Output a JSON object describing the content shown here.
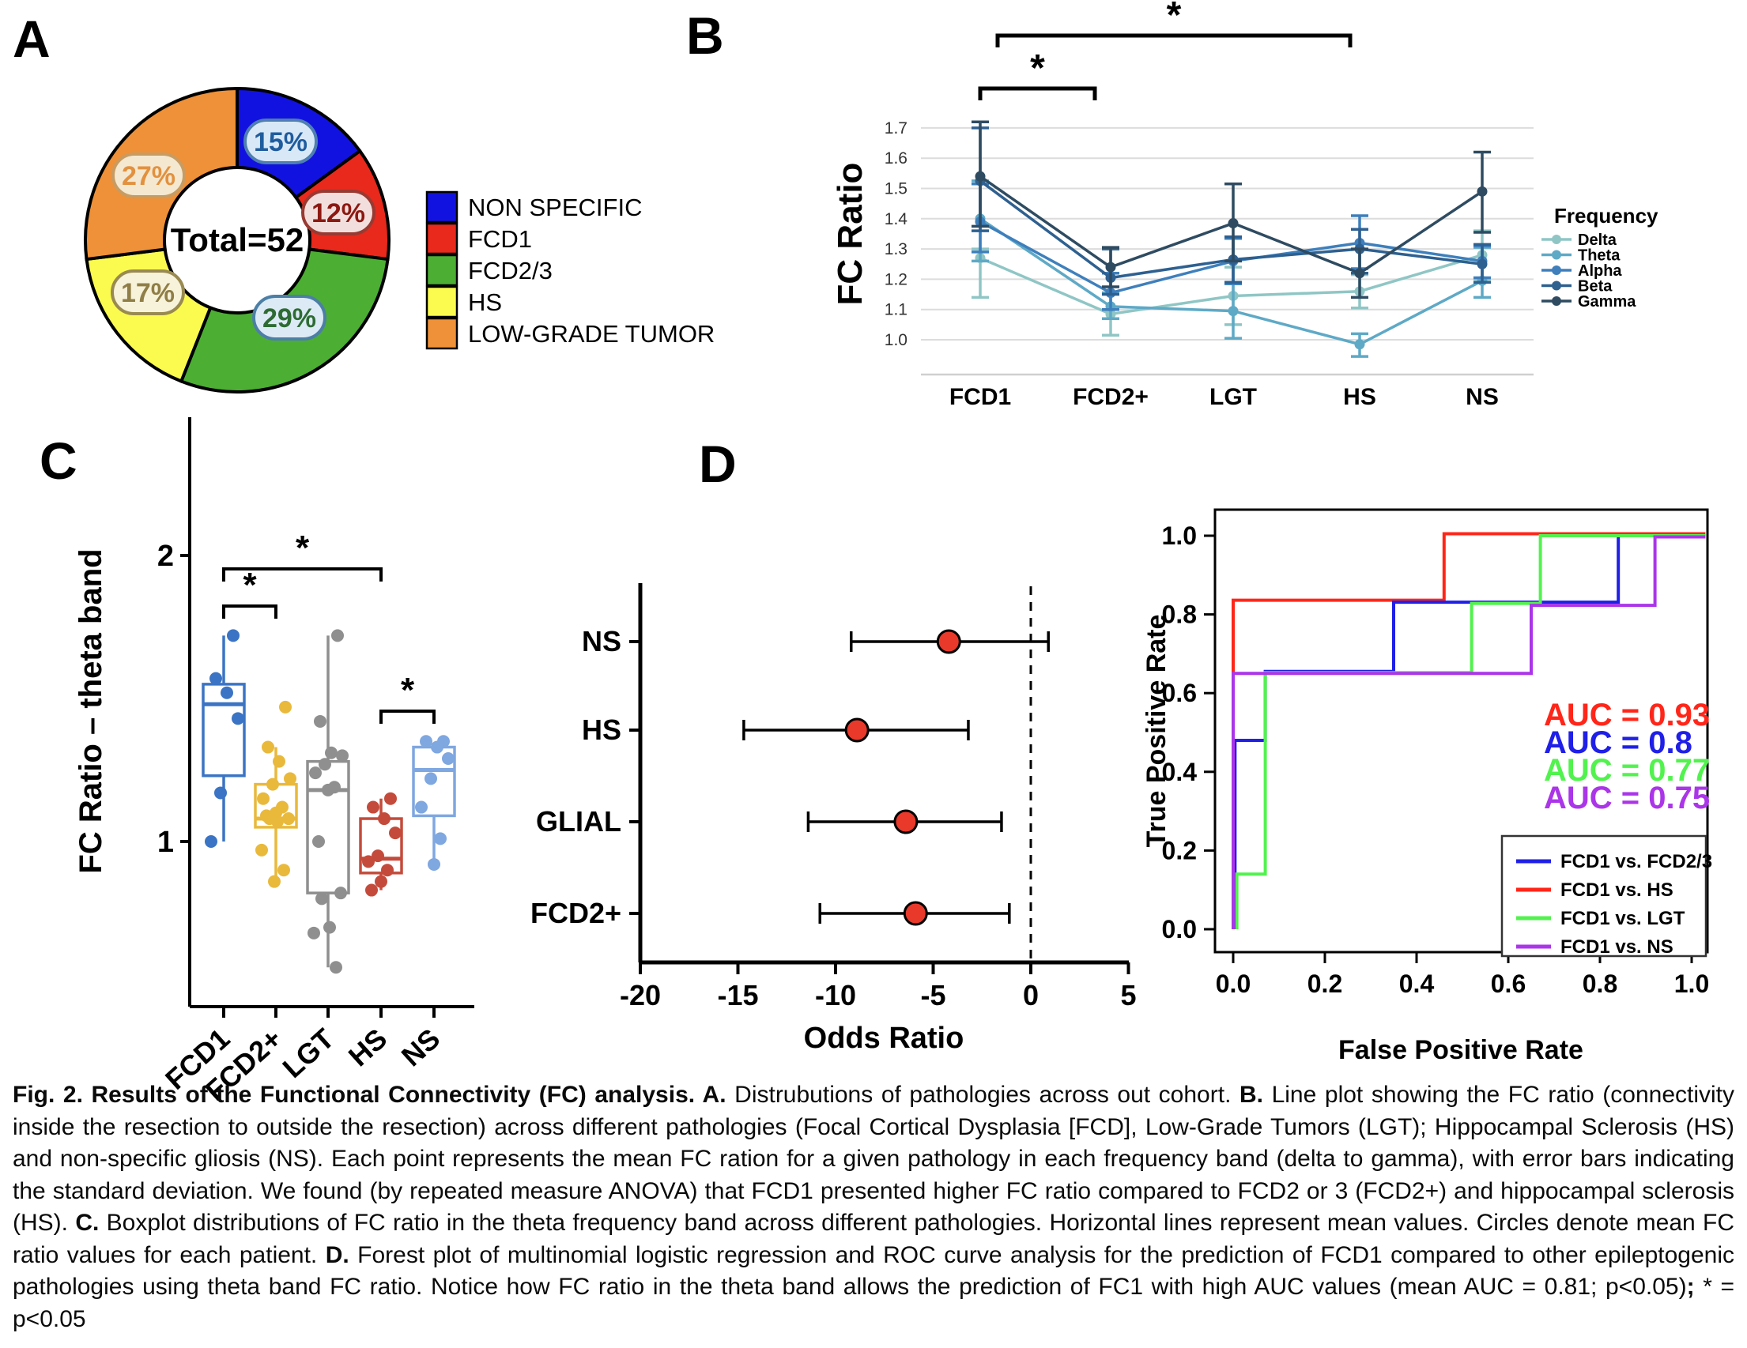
{
  "figure_title": "Fig. 2",
  "panels": [
    {
      "label": "A"
    },
    {
      "label": "B"
    },
    {
      "label": "C"
    },
    {
      "label": "D"
    }
  ],
  "chart_data": [
    {
      "id": "pathology-distribution-donut",
      "type": "pie",
      "center_label": "Total=52",
      "legend_position": "right",
      "slices": [
        {
          "label": "NON SPECIFIC",
          "value_pct": 15,
          "color": "#1212E0",
          "callout": "15%",
          "pill_bg": "#D9E8F7",
          "pill_border": "#4E7FB0",
          "pill_text_color": "#1F5C9E"
        },
        {
          "label": "FCD1",
          "value_pct": 12,
          "color": "#E8291B",
          "callout": "12%",
          "pill_bg": "#F2DFDD",
          "pill_border": "#993A32",
          "pill_text_color": "#8C1812"
        },
        {
          "label": "FCD2/3",
          "value_pct": 29,
          "color": "#4CAE33",
          "callout": "29%",
          "pill_bg": "#DCEAF5",
          "pill_border": "#4C7FA6",
          "pill_text_color": "#2E6B33"
        },
        {
          "label": "HS",
          "value_pct": 17,
          "color": "#FBFB4F",
          "callout": "17%",
          "pill_bg": "#F7F2DA",
          "pill_border": "#998A50",
          "pill_text_color": "#8F7E46"
        },
        {
          "label": "LOW-GRADE TUMOR",
          "value_pct": 27,
          "color": "#EF9138",
          "callout": "27%",
          "pill_bg": "#F5E8D0",
          "pill_border": "#C79C63",
          "pill_text_color": "#E2913F"
        }
      ]
    },
    {
      "id": "fc-ratio-by-frequency-line",
      "type": "line",
      "ylabel": "FC Ratio",
      "categories": [
        "FCD1",
        "FCD2+",
        "LGT",
        "HS",
        "NS"
      ],
      "yticks": [
        1.0,
        1.1,
        1.2,
        1.3,
        1.4,
        1.5,
        1.6,
        1.7
      ],
      "ylim": [
        0.88,
        1.75
      ],
      "grid": true,
      "legend_title": "Frequency",
      "series": [
        {
          "name": "Delta",
          "color": "#8FC6C5",
          "values": [
            1.27,
            1.085,
            1.145,
            1.16,
            1.28
          ],
          "err_lo": [
            1.14,
            1.015,
            1.05,
            1.105,
            1.2
          ],
          "err_hi": [
            1.3,
            1.155,
            1.24,
            1.215,
            1.36
          ]
        },
        {
          "name": "Theta",
          "color": "#5EA9C6",
          "values": [
            1.4,
            1.11,
            1.095,
            0.985,
            1.195
          ],
          "err_lo": [
            1.26,
            1.07,
            1.005,
            0.945,
            1.14
          ],
          "err_hi": [
            1.525,
            1.155,
            1.185,
            1.02,
            1.305
          ]
        },
        {
          "name": "Alpha",
          "color": "#3E7FBC",
          "values": [
            1.39,
            1.155,
            1.26,
            1.32,
            1.26
          ],
          "err_lo": [
            1.29,
            1.1,
            1.185,
            1.235,
            1.205
          ],
          "err_hi": [
            1.515,
            1.22,
            1.335,
            1.41,
            1.31
          ]
        },
        {
          "name": "Beta",
          "color": "#2E6090",
          "values": [
            1.525,
            1.205,
            1.265,
            1.3,
            1.25
          ],
          "err_lo": [
            1.36,
            1.15,
            1.19,
            1.22,
            1.19
          ],
          "err_hi": [
            1.7,
            1.3,
            1.34,
            1.365,
            1.315
          ]
        },
        {
          "name": "Gamma",
          "color": "#2E4B61",
          "values": [
            1.54,
            1.24,
            1.385,
            1.22,
            1.49
          ],
          "err_lo": [
            1.375,
            1.175,
            1.26,
            1.14,
            1.355
          ],
          "err_hi": [
            1.72,
            1.305,
            1.515,
            1.3,
            1.62
          ]
        }
      ],
      "significance": [
        {
          "from": "FCD1",
          "to": "FCD2+",
          "label": "*"
        },
        {
          "from": "FCD1",
          "to": "HS",
          "label": "*"
        }
      ]
    },
    {
      "id": "fc-ratio-theta-boxplot",
      "type": "box",
      "ylabel": "FC Ratio – theta band",
      "yticks": [
        1,
        2
      ],
      "categories": [
        "FCD1",
        "FCD2+",
        "LGT",
        "HS",
        "NS"
      ],
      "boxes": [
        {
          "label": "FCD1",
          "color": "#3B74C4",
          "whisker_low": 1.0,
          "q1": 1.23,
          "median": 1.48,
          "q3": 1.55,
          "whisker_high": 1.72,
          "points": [
            1.72,
            1.57,
            1.52,
            1.43,
            1.17,
            1.0
          ]
        },
        {
          "label": "FCD2+",
          "color": "#E9B93C",
          "whisker_low": 0.86,
          "q1": 1.05,
          "median": 1.08,
          "q3": 1.2,
          "whisker_high": 1.33,
          "points": [
            1.47,
            1.33,
            1.28,
            1.22,
            1.2,
            1.15,
            1.12,
            1.1,
            1.09,
            1.08,
            1.08,
            1.07,
            0.97,
            0.9,
            0.86
          ]
        },
        {
          "label": "LGT",
          "color": "#8F8F8F",
          "whisker_low": 0.56,
          "q1": 0.82,
          "median": 1.18,
          "q3": 1.28,
          "whisker_high": 1.72,
          "points": [
            1.72,
            1.42,
            1.31,
            1.3,
            1.27,
            1.24,
            1.19,
            1.18,
            1.0,
            0.82,
            0.8,
            0.7,
            0.68,
            0.56
          ]
        },
        {
          "label": "HS",
          "color": "#C44B3B",
          "whisker_low": 0.83,
          "q1": 0.89,
          "median": 0.94,
          "q3": 1.08,
          "whisker_high": 1.15,
          "points": [
            1.15,
            1.12,
            1.08,
            1.03,
            0.95,
            0.93,
            0.9,
            0.86,
            0.83
          ]
        },
        {
          "label": "NS",
          "color": "#7FA7E0",
          "whisker_low": 0.92,
          "q1": 1.09,
          "median": 1.25,
          "q3": 1.33,
          "whisker_high": 1.33,
          "points": [
            1.35,
            1.35,
            1.33,
            1.29,
            1.22,
            1.12,
            1.01,
            0.92
          ]
        }
      ],
      "significance": [
        {
          "from": "FCD1",
          "to": "FCD2+",
          "label": "*"
        },
        {
          "from": "FCD1",
          "to": "HS",
          "label": "*"
        },
        {
          "from": "HS",
          "to": "NS",
          "label": "*"
        }
      ]
    },
    {
      "id": "odds-ratio-forest-plot",
      "type": "scatter",
      "xlabel": "Odds Ratio",
      "xticks": [
        -20,
        -15,
        -10,
        -5,
        0,
        5
      ],
      "xlim": [
        -20,
        5
      ],
      "reference_line_x": 0,
      "marker_color": "#E8392B",
      "rows": [
        {
          "label": "NS",
          "value": -4.2,
          "ci": [
            -9.2,
            0.9
          ]
        },
        {
          "label": "HS",
          "value": -8.9,
          "ci": [
            -14.7,
            -3.2
          ]
        },
        {
          "label": "GLIAL",
          "value": -6.4,
          "ci": [
            -11.4,
            -1.5
          ]
        },
        {
          "label": "FCD2+",
          "value": -5.9,
          "ci": [
            -10.8,
            -1.1
          ]
        }
      ]
    },
    {
      "id": "roc-curves",
      "type": "line",
      "xlabel": "False Positive Rate",
      "ylabel": "True Positive Rate",
      "xticks": [
        0.0,
        0.2,
        0.4,
        0.6,
        0.8,
        1.0
      ],
      "yticks": [
        0.0,
        0.2,
        0.4,
        0.6,
        0.8,
        1.0
      ],
      "curves": [
        {
          "name": "FCD1 vs. FCD2/3",
          "color": "#1F1FE8",
          "auc": 0.8,
          "points": [
            [
              0.004,
              0
            ],
            [
              0.004,
              0.48
            ],
            [
              0.07,
              0.48
            ],
            [
              0.07,
              0.655
            ],
            [
              0.35,
              0.655
            ],
            [
              0.35,
              0.831
            ],
            [
              0.84,
              0.831
            ],
            [
              0.84,
              1.0
            ],
            [
              1.03,
              1.0
            ]
          ]
        },
        {
          "name": "FCD1 vs. HS",
          "color": "#FF2619",
          "auc": 0.93,
          "points": [
            [
              0,
              0
            ],
            [
              0,
              0.836
            ],
            [
              0.46,
              0.836
            ],
            [
              0.46,
              1.005
            ],
            [
              1.03,
              1.005
            ]
          ]
        },
        {
          "name": "FCD1 vs. LGT",
          "color": "#52F24E",
          "auc": 0.77,
          "points": [
            [
              0.008,
              0
            ],
            [
              0.008,
              0.14
            ],
            [
              0.07,
              0.14
            ],
            [
              0.07,
              0.652
            ],
            [
              0.52,
              0.652
            ],
            [
              0.52,
              0.828
            ],
            [
              0.67,
              0.828
            ],
            [
              0.67,
              1.0
            ],
            [
              1.03,
              1.0
            ]
          ]
        },
        {
          "name": "FCD1 vs. NS",
          "color": "#AB35E8",
          "auc": 0.75,
          "points": [
            [
              0,
              0
            ],
            [
              0,
              0.65
            ],
            [
              0.65,
              0.65
            ],
            [
              0.65,
              0.823
            ],
            [
              0.92,
              0.823
            ],
            [
              0.92,
              0.997
            ],
            [
              1.03,
              0.997
            ]
          ]
        }
      ],
      "auc_labels": [
        {
          "text": "AUC = 0.93",
          "color": "#FF2619"
        },
        {
          "text": "AUC = 0.8",
          "color": "#1F1FE8"
        },
        {
          "text": "AUC = 0.77",
          "color": "#52F24E"
        },
        {
          "text": "AUC = 0.75",
          "color": "#AB35E8"
        }
      ]
    }
  ],
  "caption": {
    "segments": [
      {
        "text": "Fig. 2. Results of the Functional Connectivity (FC) analysis. A. ",
        "bold": true
      },
      {
        "text": "Distrubutions of pathologies across out cohort. ",
        "bold": false
      },
      {
        "text": "B. ",
        "bold": true
      },
      {
        "text": "Line plot showing the FC ratio (connectivity inside the resection to outside the resection) across different pathologies (Focal Cortical Dysplasia [FCD], Low-Grade Tumors (LGT); Hippocampal Sclerosis (HS) and non-specific gliosis (NS). Each point represents the mean FC ration for a given pathology in each frequency band (delta to gamma), with error bars indicating the standard deviation. We found (by repeated measure ANOVA) that FCD1 presented higher FC ratio compared to FCD2 or 3 (FCD2+) and hippocampal sclerosis (HS). ",
        "bold": false
      },
      {
        "text": "C. ",
        "bold": true
      },
      {
        "text": "Boxplot distributions of FC ratio in the theta frequency band across different pathologies. Horizontal lines represent mean values. Circles denote mean FC ratio values for each patient. ",
        "bold": false
      },
      {
        "text": "D. ",
        "bold": true
      },
      {
        "text": "Forest plot of multinomial logistic regression and ROC curve analysis for the prediction of FCD1 compared to other epileptogenic pathologies using theta band FC ratio. Notice how FC ratio in the theta band allows the prediction of FC1 with high AUC values (mean AUC = 0.81; p<0.05)",
        "bold": false
      },
      {
        "text": "; ",
        "bold": true
      },
      {
        "text": "* = p<0.05",
        "bold": false
      }
    ]
  }
}
